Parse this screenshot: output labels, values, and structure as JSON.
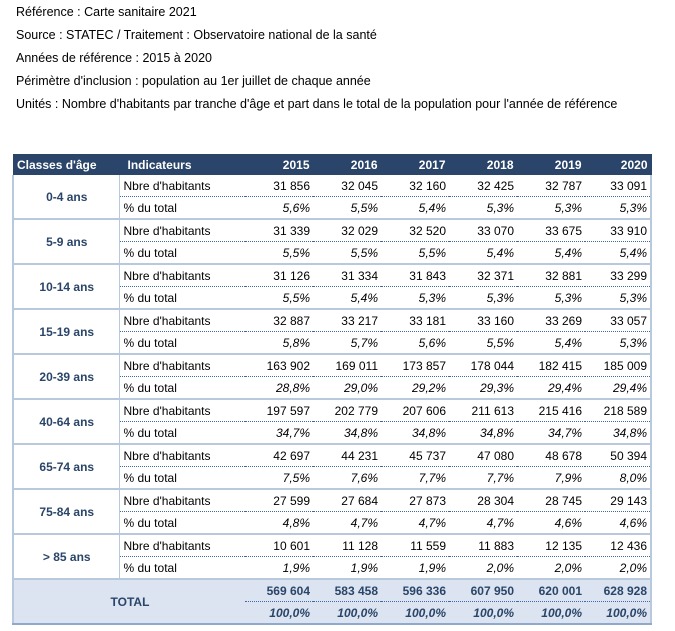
{
  "meta": {
    "reference": "Référence : Carte sanitaire 2021",
    "source": "Source : STATEC / Traitement : Observatoire national de la santé",
    "years": "Années de référence : 2015 à 2020",
    "perimeter": "Périmètre d'inclusion : population au 1er juillet de chaque année",
    "units": "Unités : Nombre d'habitants par tranche d'âge et part dans le total de la population pour l'année de référence"
  },
  "table": {
    "headers": [
      "Classes d'âge",
      "Indicateurs",
      "2015",
      "2016",
      "2017",
      "2018",
      "2019",
      "2020"
    ],
    "groups": [
      {
        "label": "0-4 ans",
        "nbre_label": "Nbre d'habitants",
        "pct_label": "% du total",
        "nbre": [
          "31 856",
          "32 045",
          "32 160",
          "32 425",
          "32 787",
          "33 091"
        ],
        "pct": [
          "5,6%",
          "5,5%",
          "5,4%",
          "5,3%",
          "5,3%",
          "5,3%"
        ]
      },
      {
        "label": "5-9 ans",
        "nbre_label": "Nbre d'habitants",
        "pct_label": "% du total",
        "nbre": [
          "31 339",
          "32 029",
          "32 520",
          "33 070",
          "33 675",
          "33 910"
        ],
        "pct": [
          "5,5%",
          "5,5%",
          "5,5%",
          "5,4%",
          "5,4%",
          "5,4%"
        ]
      },
      {
        "label": "10-14 ans",
        "nbre_label": "Nbre d'habitants",
        "pct_label": "% du total",
        "nbre": [
          "31 126",
          "31 334",
          "31 843",
          "32 371",
          "32 881",
          "33 299"
        ],
        "pct": [
          "5,5%",
          "5,4%",
          "5,3%",
          "5,3%",
          "5,3%",
          "5,3%"
        ]
      },
      {
        "label": "15-19 ans",
        "nbre_label": "Nbre d'habitants",
        "pct_label": "% du total",
        "nbre": [
          "32 887",
          "33 217",
          "33 181",
          "33 160",
          "33 269",
          "33 057"
        ],
        "pct": [
          "5,8%",
          "5,7%",
          "5,6%",
          "5,5%",
          "5,4%",
          "5,3%"
        ]
      },
      {
        "label": "20-39 ans",
        "nbre_label": "Nbre d'habitants",
        "pct_label": "% du total",
        "nbre": [
          "163 902",
          "169 011",
          "173 857",
          "178 044",
          "182 415",
          "185 009"
        ],
        "pct": [
          "28,8%",
          "29,0%",
          "29,2%",
          "29,3%",
          "29,4%",
          "29,4%"
        ]
      },
      {
        "label": "40-64 ans",
        "nbre_label": "Nbre d'habitants",
        "pct_label": "% du total",
        "nbre": [
          "197 597",
          "202 779",
          "207 606",
          "211 613",
          "215 416",
          "218 589"
        ],
        "pct": [
          "34,7%",
          "34,8%",
          "34,8%",
          "34,8%",
          "34,7%",
          "34,8%"
        ]
      },
      {
        "label": "65-74 ans",
        "nbre_label": "Nbre d'habitants",
        "pct_label": "% du total",
        "nbre": [
          "42 697",
          "44 231",
          "45 737",
          "47 080",
          "48 678",
          "50 394"
        ],
        "pct": [
          "7,5%",
          "7,6%",
          "7,7%",
          "7,7%",
          "7,9%",
          "8,0%"
        ]
      },
      {
        "label": "75-84 ans",
        "nbre_label": "Nbre d'habitants",
        "pct_label": "% du total",
        "nbre": [
          "27 599",
          "27 684",
          "27 873",
          "28 304",
          "28 745",
          "29 143"
        ],
        "pct": [
          "4,8%",
          "4,7%",
          "4,7%",
          "4,7%",
          "4,6%",
          "4,6%"
        ]
      },
      {
        "label": "> 85 ans",
        "nbre_label": "Nbre d'habitants",
        "pct_label": "% du total",
        "nbre": [
          "10 601",
          "11 128",
          "11 559",
          "11 883",
          "12 135",
          "12 436"
        ],
        "pct": [
          "1,9%",
          "1,9%",
          "1,9%",
          "2,0%",
          "2,0%",
          "2,0%"
        ]
      }
    ],
    "total": {
      "label": "TOTAL",
      "nbre": [
        "569 604",
        "583 458",
        "596 336",
        "607 950",
        "620 001",
        "628 928"
      ],
      "pct": [
        "100,0%",
        "100,0%",
        "100,0%",
        "100,0%",
        "100,0%",
        "100,0%"
      ]
    }
  }
}
